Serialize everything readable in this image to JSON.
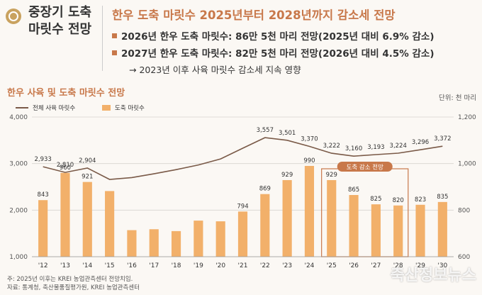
{
  "header": {
    "left_title_line1": "중장기 도축",
    "left_title_line2": "마릿수 전망",
    "main_title": "한우 도축 마릿수 2025년부터 2028년까지 감소세 전망",
    "bullet1": "2026년 한우 도축 마릿수: 86만 5천 마리 전망(2025년 대비 6.9% 감소)",
    "bullet2": "2027년 한우 도축 마릿수: 82만 5천 마리 전망(2026년 대비 4.5% 감소)",
    "arrow_note": "2023년 이후 사육 마릿수 감소세 지속 영향"
  },
  "section_title": "한우 사육 및 도축 마릿수 전망",
  "unit": "단위: 천 마리",
  "highlight_label": "도축 감소 전망",
  "notes": {
    "line1": "주: 2025년 이후는 KREI 농업관측센터 전망치임.",
    "line2": "자료: 통계청, 축산물품질평가원, KREI 농업관측센터"
  },
  "watermark": "축산정보뉴스",
  "colors": {
    "bar": "#f2b06a",
    "line": "#7a5a48",
    "accent": "#c8784a"
  },
  "chart_data": {
    "type": "bar",
    "categories": [
      "'12",
      "'13",
      "'14",
      "'15",
      "'16",
      "'17",
      "'18",
      "'19",
      "'20",
      "'21",
      "'22",
      "'23",
      "'24",
      "'25",
      "'26",
      "'27",
      "'28",
      "'29",
      "'30"
    ],
    "series": [
      {
        "name": "전체 사육 마릿수",
        "type": "line",
        "axis": "left",
        "values": [
          2933,
          2810,
          2904,
          2660,
          2700,
          2780,
          2870,
          2970,
          3100,
          3330,
          3557,
          3501,
          3370,
          3222,
          3160,
          3193,
          3224,
          3296,
          3372
        ],
        "labels": [
          "2,933",
          "2,810",
          "2,904",
          "",
          "",
          "",
          "",
          "",
          "",
          "",
          "3,557",
          "3,501",
          "3,370",
          "3,222",
          "3,160",
          "3,193",
          "3,224",
          "3,296",
          "3,372"
        ]
      },
      {
        "name": "도축 마릿수",
        "type": "bar",
        "axis": "right",
        "values": [
          843,
          960,
          921,
          882,
          714,
          718,
          710,
          755,
          752,
          794,
          869,
          929,
          990,
          929,
          865,
          825,
          820,
          823,
          835
        ],
        "labels": [
          "843",
          "960",
          "921",
          "",
          "",
          "",
          "",
          "",
          "",
          "794",
          "869",
          "929",
          "990",
          "929",
          "865",
          "825",
          "820",
          "823",
          "835"
        ]
      }
    ],
    "y_left": {
      "min": 1000,
      "max": 4000,
      "ticks": [
        "1,000",
        "2,000",
        "3,000",
        "4,000"
      ]
    },
    "y_right": {
      "min": 600,
      "max": 1200,
      "ticks": [
        "600",
        "800",
        "1,000",
        "1,200"
      ]
    },
    "highlight": {
      "from": "'25",
      "to": "'28"
    },
    "grid": true,
    "legend": "top-left"
  }
}
